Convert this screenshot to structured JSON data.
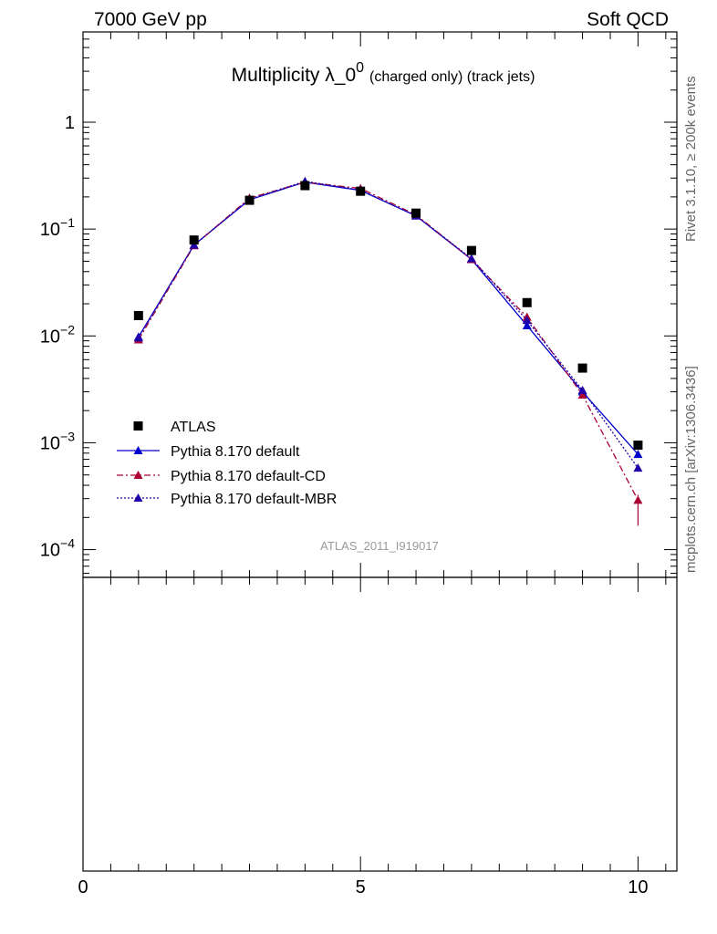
{
  "header": {
    "left": "7000 GeV pp",
    "right": "Soft QCD"
  },
  "side_labels": {
    "rivet": "Rivet 3.1.10, ≥ 200k events",
    "mcplots": "mcplots.cern.ch [arXiv:1306.3436]"
  },
  "analysis_id": "ATLAS_2011_I919017",
  "chart_data": {
    "type": "scatter",
    "title": "Multiplicity λ_0⁰ (charged only) (track jets)",
    "title_main": "Multiplicity λ_0",
    "title_sup": "0",
    "title_small": "(charged only) (track jets)",
    "xlabel": "",
    "ylabel": "",
    "xlim": [
      0,
      10.7
    ],
    "ylim": [
      5.5e-05,
      7
    ],
    "y_scale": "log",
    "x_ticks": [
      0,
      5,
      10
    ],
    "x_tick_labels": [
      "0",
      "5",
      "10"
    ],
    "y_ticks": [
      1,
      0.1,
      0.01,
      0.001,
      0.0001
    ],
    "y_tick_labels": [
      {
        "base": "1",
        "exp": ""
      },
      {
        "base": "10",
        "exp": "−1"
      },
      {
        "base": "10",
        "exp": "−2"
      },
      {
        "base": "10",
        "exp": "−3"
      },
      {
        "base": "10",
        "exp": "−4"
      }
    ],
    "legend_position": "middle-left",
    "series": [
      {
        "name": "ATLAS",
        "style": "square-marker",
        "color": "#000000",
        "x": [
          1,
          2,
          3,
          4,
          5,
          6,
          7,
          8,
          9,
          10
        ],
        "y": [
          0.0155,
          0.079,
          0.186,
          0.255,
          0.226,
          0.141,
          0.063,
          0.0205,
          0.005,
          0.00095
        ]
      },
      {
        "name": "Pythia 8.170 default",
        "style": "solid",
        "color": "#0000cc",
        "x": [
          1,
          2,
          3,
          4,
          5,
          6,
          7,
          8,
          9,
          10
        ],
        "y": [
          0.0098,
          0.071,
          0.188,
          0.275,
          0.23,
          0.133,
          0.052,
          0.0125,
          0.003,
          0.00078
        ]
      },
      {
        "name": "Pythia 8.170 default-CD",
        "style": "dash-dot",
        "color": "#aa0033",
        "x": [
          1,
          2,
          3,
          4,
          5,
          6,
          7,
          8,
          9,
          10
        ],
        "y": [
          0.0092,
          0.07,
          0.195,
          0.275,
          0.24,
          0.136,
          0.052,
          0.015,
          0.0028,
          0.00029
        ]
      },
      {
        "name": "Pythia 8.170 default-MBR",
        "style": "dotted",
        "color": "#2200aa",
        "x": [
          1,
          2,
          3,
          4,
          5,
          6,
          7,
          8,
          9,
          10
        ],
        "y": [
          0.0096,
          0.071,
          0.19,
          0.28,
          0.232,
          0.133,
          0.053,
          0.014,
          0.0031,
          0.00058
        ]
      }
    ]
  }
}
